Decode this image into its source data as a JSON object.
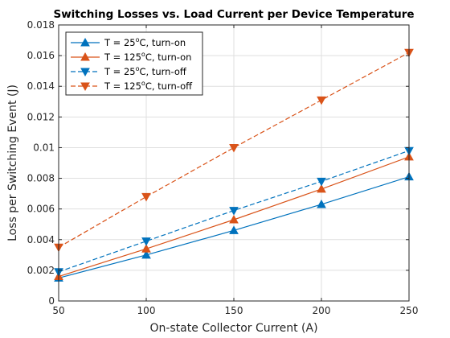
{
  "chart_data": {
    "type": "line",
    "title": "Switching Losses vs. Load Current per Device Temperature",
    "xlabel": "On-state Collector Current (A)",
    "ylabel": "Loss per Switching Event (J)",
    "xlim": [
      50,
      250
    ],
    "ylim": [
      0,
      0.018
    ],
    "xticks": [
      "50",
      "100",
      "150",
      "200",
      "250"
    ],
    "yticks": [
      "0",
      "0.002",
      "0.004",
      "0.006",
      "0.008",
      "0.01",
      "0.012",
      "0.014",
      "0.016",
      "0.018"
    ],
    "grid": true,
    "legend_position": "top-left",
    "x": [
      50,
      100,
      150,
      200,
      250
    ],
    "series": [
      {
        "name_prefix": "T = 25",
        "name_suffix": "C, turn-on",
        "name_sup": "o",
        "values": [
          0.0015,
          0.003,
          0.0046,
          0.0063,
          0.0081
        ],
        "color": "#0072BD",
        "line": "solid",
        "marker": "triangle-up"
      },
      {
        "name_prefix": "T = 125",
        "name_suffix": "C, turn-on",
        "name_sup": "o",
        "values": [
          0.0016,
          0.0034,
          0.0053,
          0.0073,
          0.0094
        ],
        "color": "#D95319",
        "line": "solid",
        "marker": "triangle-up"
      },
      {
        "name_prefix": "T = 25",
        "name_suffix": "C, turn-off",
        "name_sup": "o",
        "values": [
          0.0019,
          0.0039,
          0.0059,
          0.0078,
          0.0098
        ],
        "color": "#0072BD",
        "line": "dashed",
        "marker": "triangle-down"
      },
      {
        "name_prefix": "T = 125",
        "name_suffix": "C, turn-off",
        "name_sup": "o",
        "values": [
          0.0035,
          0.0068,
          0.01,
          0.0131,
          0.0162
        ],
        "color": "#D95319",
        "line": "dashed",
        "marker": "triangle-down"
      }
    ]
  }
}
